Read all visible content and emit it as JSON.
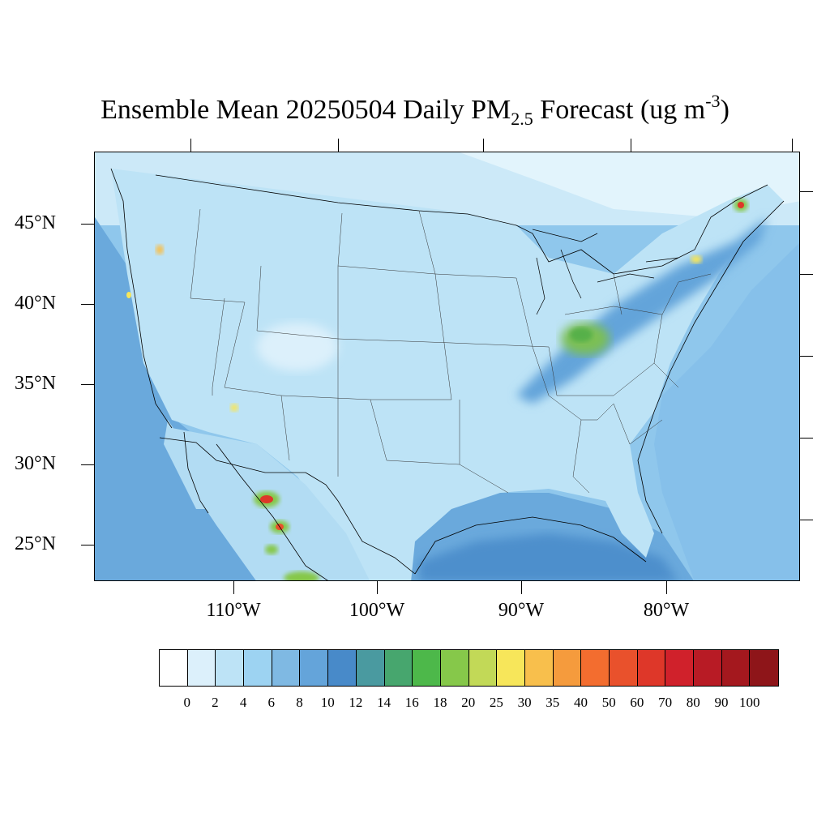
{
  "title": {
    "prefix": "Ensemble Mean 20250504 Daily PM",
    "subscript": "2.5",
    "suffix": " Forecast (ug m",
    "superscript": "-3",
    "close": ")"
  },
  "lat_labels": [
    "45°N",
    "40°N",
    "35°N",
    "30°N",
    "25°N"
  ],
  "lon_labels": [
    "110°W",
    "100°W",
    "90°W",
    "80°W"
  ],
  "colorbar": {
    "labels": [
      "0",
      "2",
      "4",
      "6",
      "8",
      "10",
      "12",
      "14",
      "16",
      "18",
      "20",
      "25",
      "30",
      "35",
      "40",
      "50",
      "60",
      "70",
      "80",
      "90",
      "100"
    ],
    "colors": [
      "#ffffff",
      "#dcf0fb",
      "#bde3f6",
      "#9dd3f2",
      "#7fb9e3",
      "#64a4da",
      "#488ac9",
      "#4a9aa0",
      "#47a66e",
      "#4db84a",
      "#86c84a",
      "#c2d957",
      "#f7e65a",
      "#f8bf4c",
      "#f59b3d",
      "#f36d2f",
      "#e9512c",
      "#de3729",
      "#d0212b",
      "#b81b25",
      "#a4181e",
      "#8e1519"
    ]
  },
  "map": {
    "background_color": "#a8d8f2",
    "land_color": "#bde3f6",
    "ocean_color": "#8ec6ec"
  }
}
